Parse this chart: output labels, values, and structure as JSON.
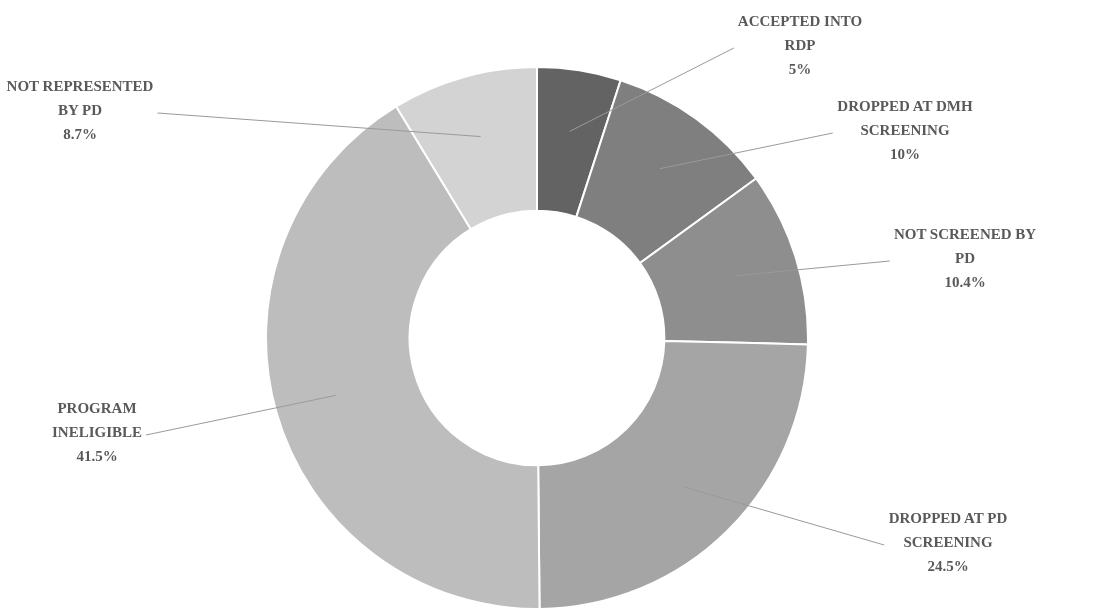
{
  "chart_data": {
    "type": "donut",
    "categories": [
      "ACCEPTED INTO RDP",
      "DROPPED AT DMH SCREENING",
      "NOT SCREENED BY PD",
      "DROPPED AT PD SCREENING",
      "PROGRAM INELIGIBLE",
      "NOT REPRESENTED BY PD"
    ],
    "values": [
      5,
      10,
      10.4,
      24.5,
      41.5,
      8.7
    ],
    "value_labels": [
      "5%",
      "10%",
      "10.4%",
      "24.5%",
      "41.5%",
      "8.7%"
    ],
    "colors": [
      "#636363",
      "#7f7f7f",
      "#8e8e8e",
      "#a5a5a5",
      "#bdbdbd",
      "#d3d3d3"
    ],
    "legend": false
  }
}
